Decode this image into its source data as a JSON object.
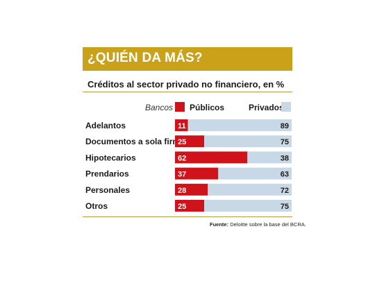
{
  "header": {
    "title": "¿QUIÉN DA MÁS?",
    "subtitle": "Créditos al sector privado no financiero, en %"
  },
  "legend": {
    "prefix": "Bancos",
    "publicos": "Públicos",
    "privados": "Privados"
  },
  "colors": {
    "title_bg": "#c9a21a",
    "publicos": "#d0121b",
    "privados": "#c9d8e6",
    "rule": "#b89a3e"
  },
  "footer": {
    "source_label": "Fuente:",
    "source_text": "Deloitte sobre la base del BCRA."
  },
  "chart_data": {
    "type": "bar",
    "orientation": "horizontal",
    "stacked": true,
    "categories": [
      "Adelantos",
      "Documentos a sola firma",
      "Hipotecarios",
      "Prendarios",
      "Personales",
      "Otros"
    ],
    "series": [
      {
        "name": "Públicos",
        "values": [
          11,
          25,
          62,
          37,
          28,
          25
        ]
      },
      {
        "name": "Privados",
        "values": [
          89,
          75,
          38,
          63,
          72,
          75
        ]
      }
    ],
    "xlim": [
      0,
      100
    ],
    "legend_position": "top"
  }
}
